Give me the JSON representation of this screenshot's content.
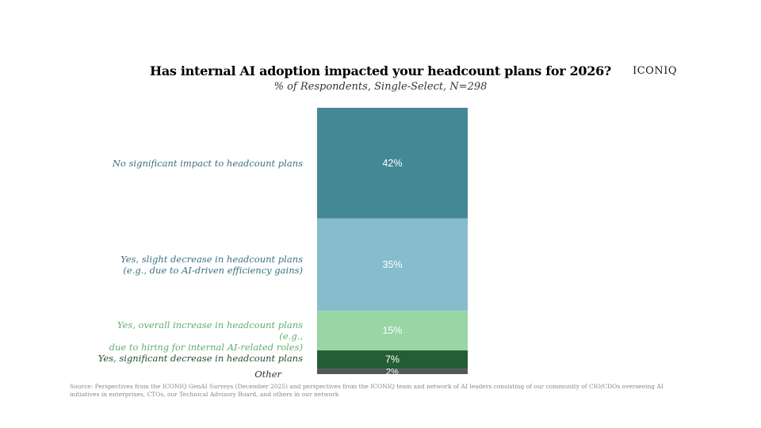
{
  "brand": "ICONIQ",
  "chart_data": {
    "type": "bar",
    "stacked": true,
    "title": "Has internal AI adoption impacted your headcount plans for 2026?",
    "subtitle": "% of Respondents, Single-Select, N=298",
    "categories": [
      "No significant impact to headcount plans",
      "Yes, slight decrease in headcount plans (e.g., due to AI-driven efficiency gains)",
      "Yes, overall increase in headcount plans (e.g., due to hiring for internal AI-related roles)",
      "Yes, significant decrease in headcount plans",
      "Other"
    ],
    "label_lines": [
      [
        "No significant impact to headcount plans"
      ],
      [
        "Yes, slight decrease in headcount plans",
        "(e.g., due to AI-driven efficiency gains)"
      ],
      [
        "Yes, overall increase in headcount plans (e.g.,",
        "due to hiring for internal AI-related roles)"
      ],
      [
        "Yes, significant decrease in headcount plans"
      ],
      [
        "Other"
      ]
    ],
    "values": [
      42,
      35,
      15,
      7,
      2
    ],
    "data_labels": [
      "42%",
      "35%",
      "15%",
      "7%",
      "2%"
    ],
    "colors": [
      "#448896",
      "#86bccb",
      "#98d6a5",
      "#235e35",
      "#555555"
    ],
    "label_colors": [
      "#3b6f7e",
      "#3b6f7e",
      "#5fae6a",
      "#1e4f2c",
      "#333333"
    ],
    "xlabel": "",
    "ylabel": ""
  },
  "source": "Source: Perspectives from the ICONIQ GenAI Surveys (December 2025) and perspectives from the ICONIQ team and network of AI leaders consisting of our community of CIO/CDOs overseeing AI initiatives in enterprises, CTOs, our Technical Advisory Board, and others in our network"
}
